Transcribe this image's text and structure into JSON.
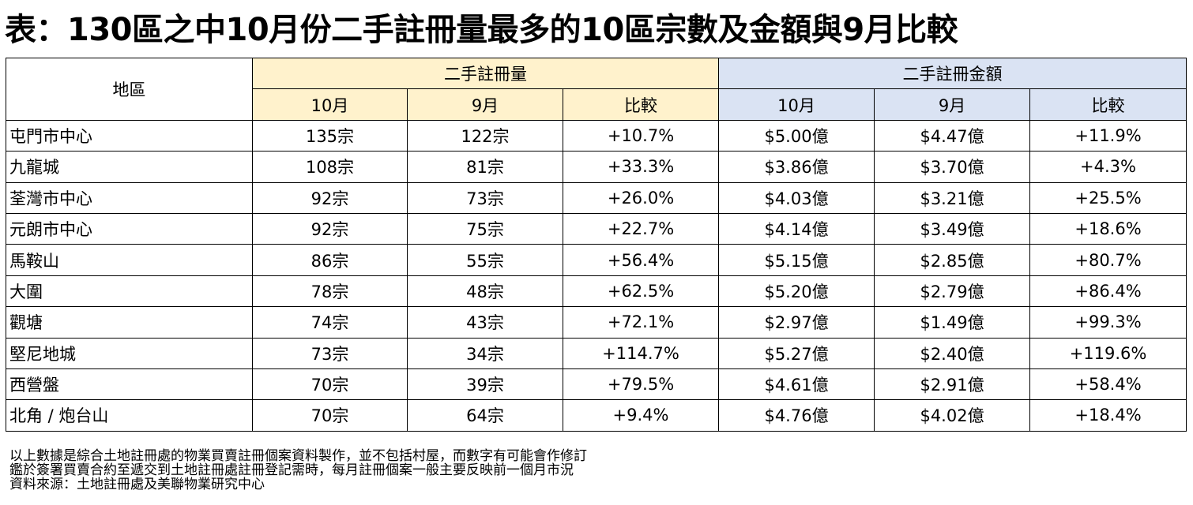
{
  "title": "表：130區之中10月份二手註冊量最多的10區宗數及金額與9月比較",
  "table": {
    "region_header": "地區",
    "volume_group": "二手註冊量",
    "amount_group": "二手註冊金額",
    "sub_headers": [
      "10月",
      "9月",
      "比較",
      "10月",
      "9月",
      "比較"
    ],
    "rows": [
      {
        "region": "屯門市中心",
        "vol_oct": "135宗",
        "vol_sep": "122宗",
        "vol_chg": "+10.7%",
        "amt_oct": "$5.00億",
        "amt_sep": "$4.47億",
        "amt_chg": "+11.9%"
      },
      {
        "region": "九龍城",
        "vol_oct": "108宗",
        "vol_sep": "81宗",
        "vol_chg": "+33.3%",
        "amt_oct": "$3.86億",
        "amt_sep": "$3.70億",
        "amt_chg": "+4.3%"
      },
      {
        "region": "荃灣市中心",
        "vol_oct": "92宗",
        "vol_sep": "73宗",
        "vol_chg": "+26.0%",
        "amt_oct": "$4.03億",
        "amt_sep": "$3.21億",
        "amt_chg": "+25.5%"
      },
      {
        "region": "元朗市中心",
        "vol_oct": "92宗",
        "vol_sep": "75宗",
        "vol_chg": "+22.7%",
        "amt_oct": "$4.14億",
        "amt_sep": "$3.49億",
        "amt_chg": "+18.6%"
      },
      {
        "region": "馬鞍山",
        "vol_oct": "86宗",
        "vol_sep": "55宗",
        "vol_chg": "+56.4%",
        "amt_oct": "$5.15億",
        "amt_sep": "$2.85億",
        "amt_chg": "+80.7%"
      },
      {
        "region": "大圍",
        "vol_oct": "78宗",
        "vol_sep": "48宗",
        "vol_chg": "+62.5%",
        "amt_oct": "$5.20億",
        "amt_sep": "$2.79億",
        "amt_chg": "+86.4%"
      },
      {
        "region": "觀塘",
        "vol_oct": "74宗",
        "vol_sep": "43宗",
        "vol_chg": "+72.1%",
        "amt_oct": "$2.97億",
        "amt_sep": "$1.49億",
        "amt_chg": "+99.3%"
      },
      {
        "region": "堅尼地城",
        "vol_oct": "73宗",
        "vol_sep": "34宗",
        "vol_chg": "+114.7%",
        "amt_oct": "$5.27億",
        "amt_sep": "$2.40億",
        "amt_chg": "+119.6%"
      },
      {
        "region": "西營盤",
        "vol_oct": "70宗",
        "vol_sep": "39宗",
        "vol_chg": "+79.5%",
        "amt_oct": "$4.61億",
        "amt_sep": "$2.91億",
        "amt_chg": "+58.4%"
      },
      {
        "region": "北角 / 炮台山",
        "vol_oct": "70宗",
        "vol_sep": "64宗",
        "vol_chg": "+9.4%",
        "amt_oct": "$4.76億",
        "amt_sep": "$4.02億",
        "amt_chg": "+18.4%"
      }
    ]
  },
  "notes": [
    "以上數據是綜合土地註冊處的物業買賣註冊個案資料製作，並不包括村屋，而數字有可能會作修訂",
    "鑑於簽署買賣合約至遞交到土地註冊處註冊登記需時，每月註冊個案一般主要反映前一個月市況",
    "資料來源：土地註冊處及美聯物業研究中心"
  ],
  "colors": {
    "volume_header_bg": "#fff2cc",
    "amount_header_bg": "#dae3f3"
  }
}
